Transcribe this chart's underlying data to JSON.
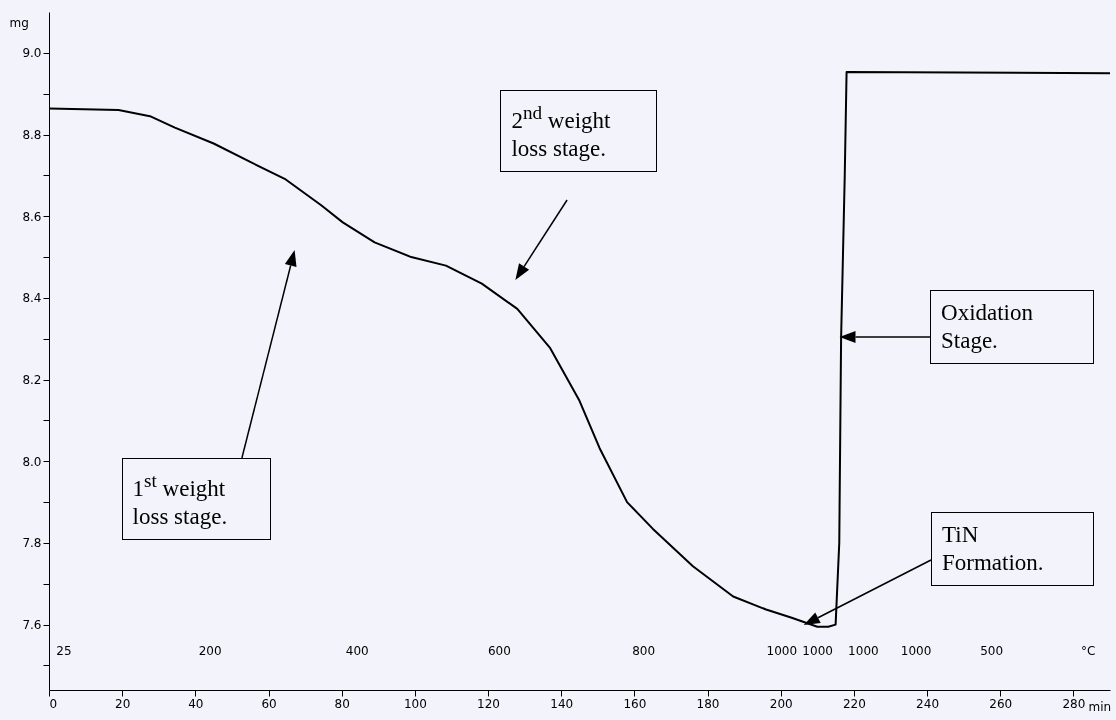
{
  "chart_data": {
    "type": "line",
    "xlabel": "min",
    "ylabel": "mg",
    "xlim": [
      0,
      290
    ],
    "ylim": [
      7.44,
      9.1
    ],
    "xticks": [
      0,
      20,
      40,
      60,
      80,
      100,
      120,
      140,
      160,
      180,
      200,
      220,
      240,
      260,
      280
    ],
    "yticks": [
      {
        "value": 7.5,
        "label": null
      },
      7.6,
      {
        "value": 7.7,
        "label": null
      },
      7.8,
      {
        "value": 7.9,
        "label": null
      },
      {
        "value": 8,
        "label": "8.0"
      },
      {
        "value": 8.1,
        "label": null
      },
      8.2,
      {
        "value": 8.3,
        "label": null
      },
      8.4,
      {
        "value": 8.5,
        "label": null
      },
      8.6,
      {
        "value": 8.7,
        "label": null
      },
      8.8,
      {
        "value": 8.9,
        "label": null
      },
      {
        "value": 9,
        "label": "9.0"
      }
    ],
    "grid": false,
    "series": [
      {
        "color": "#000000",
        "x": [
          0,
          19,
          27.6,
          34.4,
          45,
          55,
          64.7,
          74.4,
          80.3,
          89,
          99,
          108.5,
          118.3,
          128,
          137,
          145,
          150.5,
          158,
          165,
          176,
          187,
          196,
          203,
          210,
          213,
          215,
          216,
          216.5,
          217.5,
          218,
          290
        ],
        "values": [
          8.864,
          8.86,
          8.845,
          8.817,
          8.778,
          8.733,
          8.69,
          8.627,
          8.585,
          8.536,
          8.5,
          8.479,
          8.435,
          8.373,
          8.277,
          8.148,
          8.032,
          7.9,
          7.835,
          7.743,
          7.669,
          7.637,
          7.617,
          7.595,
          7.595,
          7.6,
          7.8,
          8.3,
          8.7,
          8.953,
          8.95
        ]
      }
    ],
    "annotations": [
      "1$^{st}$ weight loss stage.",
      "2$^{nd}$ weight loss stage.",
      "Oxidation Stage.",
      "TiN Formation.",
      "25",
      "200",
      "400",
      "600",
      "800",
      "1000",
      "1000",
      "1000",
      "1000",
      "500",
      "°C"
    ]
  }
}
